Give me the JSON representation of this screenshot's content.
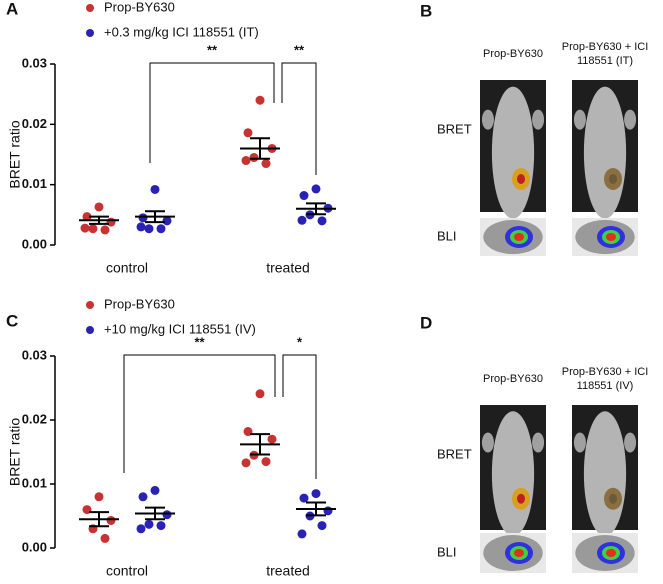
{
  "chart_data": [
    {
      "type": "dotplot",
      "panel": "A",
      "ylabel": "BRET ratio",
      "categories": [
        "control",
        "treated"
      ],
      "ylim": [
        0,
        0.03
      ],
      "yticks": [
        {
          "value": 0,
          "label": "0.00"
        },
        0.01,
        0.02,
        0.03
      ],
      "series": [
        {
          "name": "Prop-BY630",
          "color": "#c83232",
          "values": [
            [
              0.0063,
              0.0047,
              0.0038,
              0.0027,
              0.0025,
              0.0028
            ],
            [
              0.024,
              0.0186,
              0.016,
              0.0145,
              0.0135,
              0.014
            ]
          ],
          "means": [
            0.0041,
            0.016
          ],
          "errors": [
            0.0006,
            0.0017
          ]
        },
        {
          "name": "+0.3 mg/kg ICI 118551 (IT)",
          "color": "#2a22b4",
          "values": [
            [
              0.0092,
              0.0045,
              0.004,
              0.0027,
              0.0027,
              0.003
            ],
            [
              0.0093,
              0.0082,
              0.0061,
              0.005,
              0.004,
              0.0041
            ]
          ],
          "means": [
            0.0047,
            0.006
          ],
          "errors": [
            0.0009,
            0.0009
          ]
        }
      ],
      "annotations": [
        "**",
        "**"
      ]
    },
    {
      "type": "dotplot",
      "panel": "C",
      "ylabel": "BRET ratio",
      "categories": [
        "control",
        "treated"
      ],
      "ylim": [
        0,
        0.03
      ],
      "yticks": [
        {
          "value": 0,
          "label": "0.00"
        },
        0.01,
        0.02,
        0.03
      ],
      "series": [
        {
          "name": "Prop-BY630",
          "color": "#c83232",
          "values": [
            [
              0.008,
              0.006,
              0.0043,
              0.003,
              0.0015
            ],
            [
              0.0241,
              0.0182,
              0.017,
              0.0145,
              0.0135,
              0.0133
            ]
          ],
          "means": [
            0.0045,
            0.0162
          ],
          "errors": [
            0.0011,
            0.0016
          ]
        },
        {
          "name": "+10 mg/kg ICI 118551 (IV)",
          "color": "#2a22b4",
          "values": [
            [
              0.009,
              0.008,
              0.0052,
              0.0037,
              0.0035,
              0.003
            ],
            [
              0.0085,
              0.0078,
              0.0058,
              0.005,
              0.0035,
              0.0022
            ]
          ],
          "means": [
            0.0054,
            0.0061
          ],
          "errors": [
            0.0009,
            0.001
          ]
        }
      ],
      "annotations": [
        "**",
        "*"
      ]
    }
  ],
  "image_panels": [
    {
      "label": "B",
      "columns": [
        "Prop-BY630",
        "Prop-BY630 + ICI 118551 (IT)"
      ],
      "rows": [
        "BRET",
        "BLI"
      ]
    },
    {
      "label": "D",
      "columns": [
        "Prop-BY630",
        "Prop-BY630 + ICI 118551 (IV)"
      ],
      "rows": [
        "BRET",
        "BLI"
      ]
    }
  ]
}
